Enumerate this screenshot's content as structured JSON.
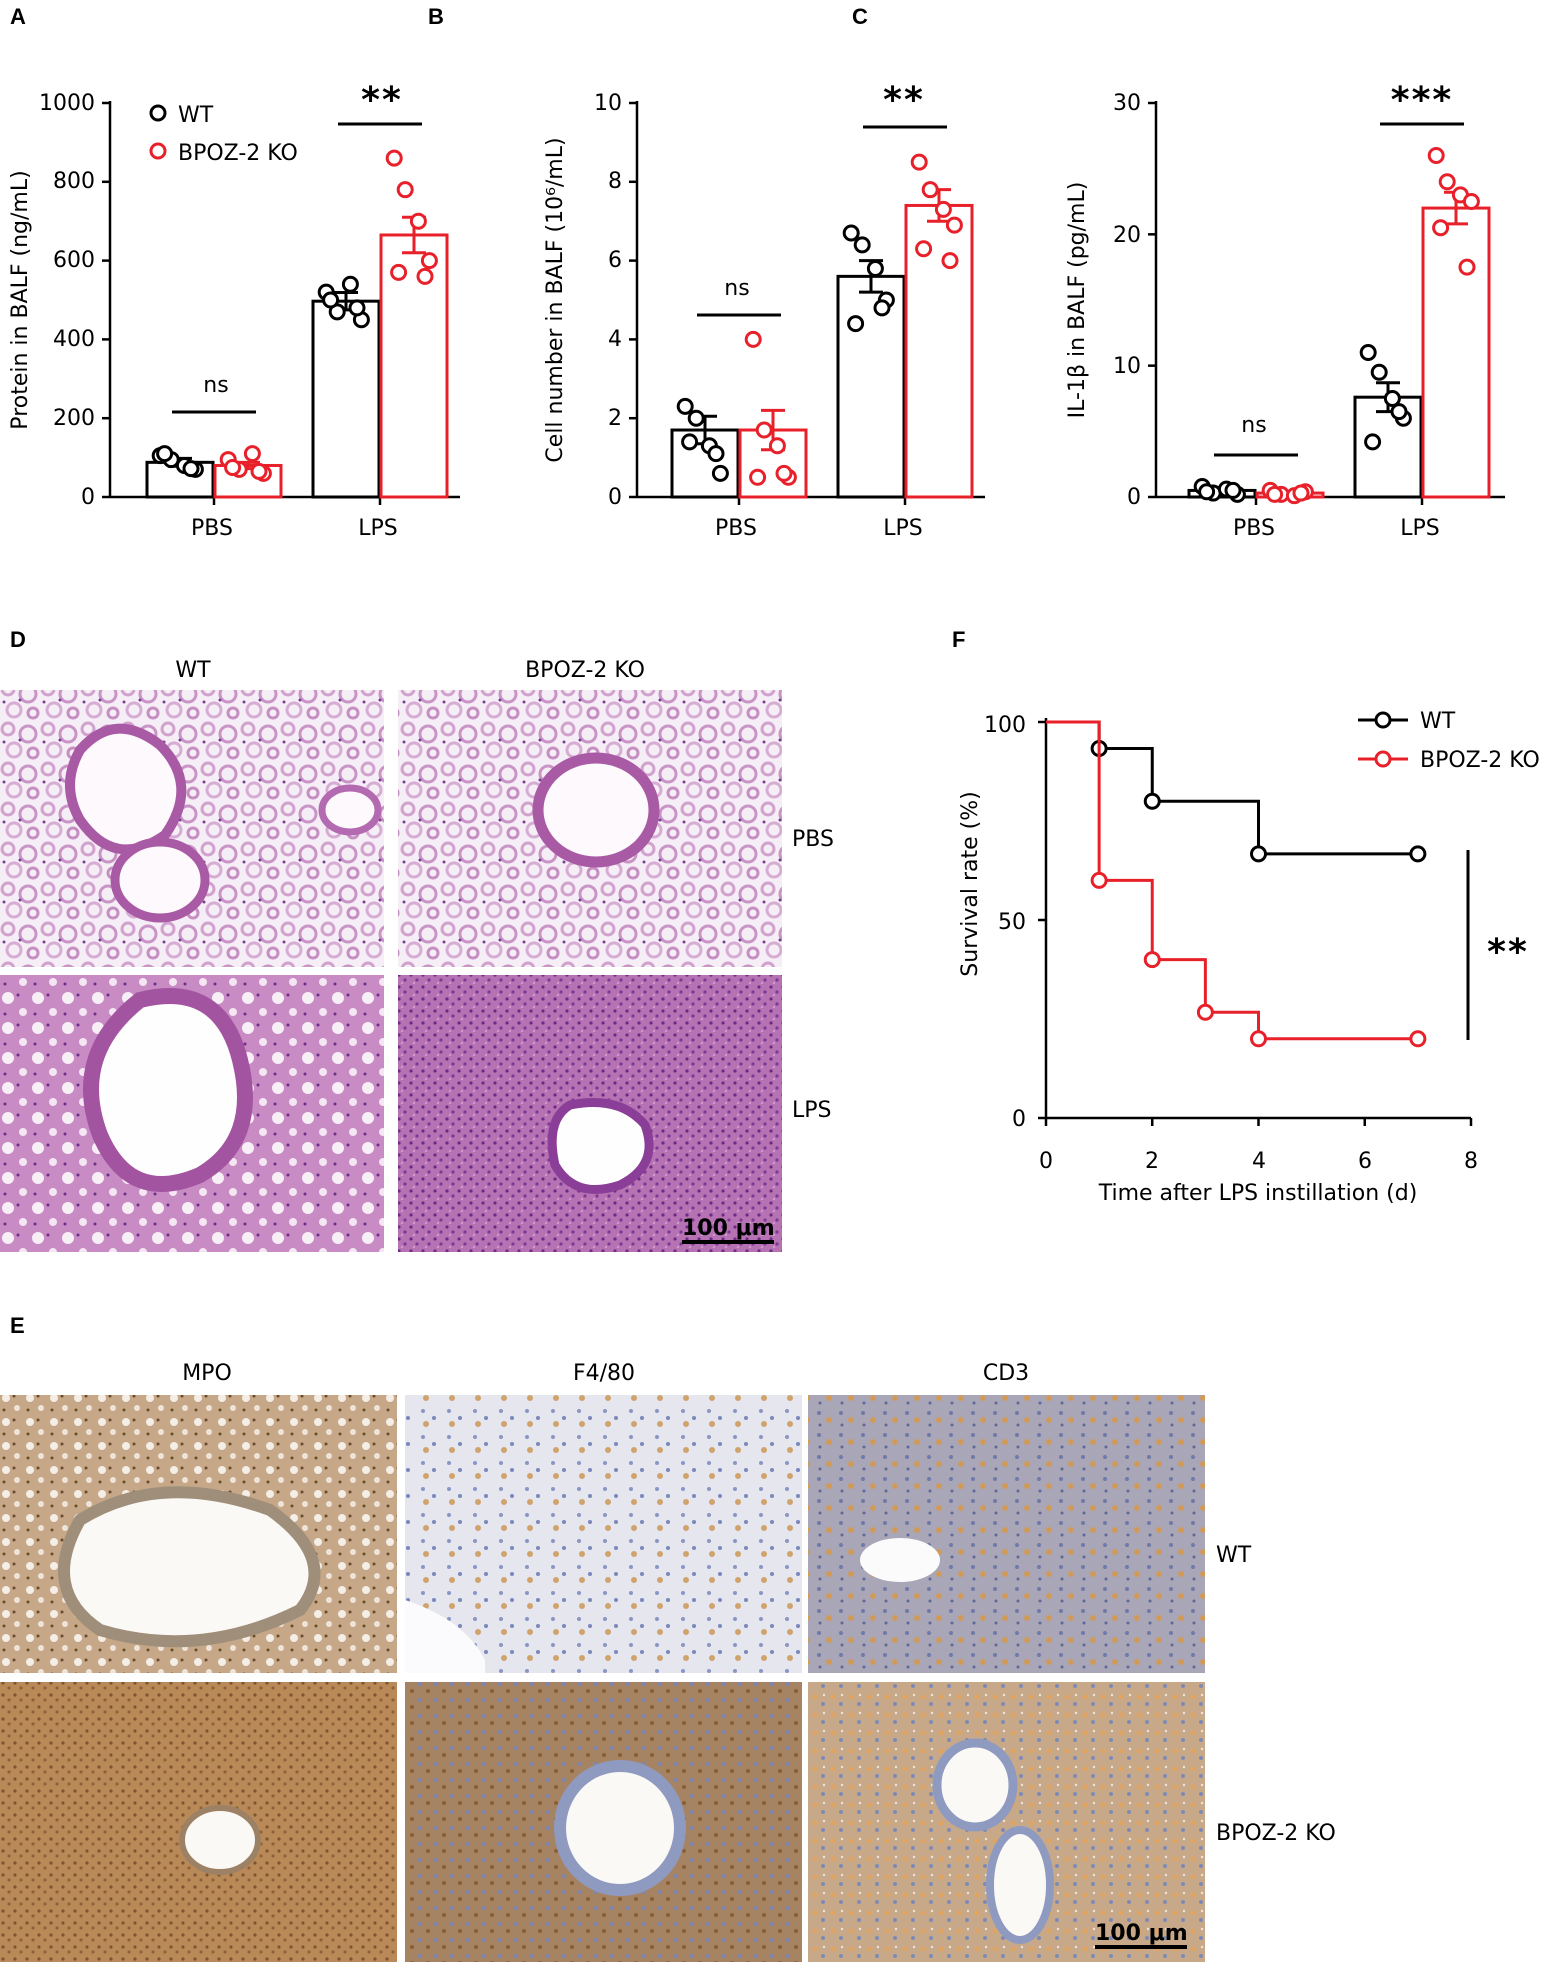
{
  "panels": {
    "A": "A",
    "B": "B",
    "C": "C",
    "D": "D",
    "E": "E",
    "F": "F"
  },
  "colors": {
    "wt": "#000000",
    "ko": "#e8202a"
  },
  "histology_d": {
    "col_labels": [
      "WT",
      "BPOZ-2 KO"
    ],
    "row_labels": [
      "PBS",
      "LPS"
    ],
    "scale_bar": "100 μm",
    "tissue_colors": [
      "#e9cfe6",
      "#c98bc4",
      "#b56fb4"
    ]
  },
  "histology_e": {
    "col_labels": [
      "MPO",
      "F4/80",
      "CD3"
    ],
    "row_labels": [
      "WT",
      "BPOZ-2 KO"
    ],
    "scale_bar": "100 μm",
    "tissue_colors": [
      "#cdb192",
      "#b9875a",
      "#8f9cc0"
    ]
  },
  "chart_data": [
    {
      "type": "bar",
      "panel": "A",
      "categories": [
        "PBS",
        "LPS"
      ],
      "ylabel": "Protein in BALF (ng/mL)",
      "ylim": [
        0,
        1000
      ],
      "yticks": [
        "0",
        "200",
        "400",
        "600",
        "800",
        "1000"
      ],
      "legend": {
        "placement": "top-left",
        "entries": [
          "WT",
          "BPOZ-2 KO"
        ]
      },
      "series": [
        {
          "name": "WT",
          "values": [
            88,
            497
          ],
          "sem": [
            10,
            22
          ],
          "points": [
            [
              105,
              95,
              80,
              70,
              110,
              72
            ],
            [
              520,
              470,
              540,
              450,
              500,
              480
            ]
          ]
        },
        {
          "name": "BPOZ-2 KO",
          "values": [
            80,
            665
          ],
          "sem": [
            8,
            45
          ],
          "points": [
            [
              95,
              70,
              110,
              60,
              75,
              65
            ],
            [
              860,
              780,
              700,
              600,
              570,
              560
            ]
          ]
        }
      ],
      "significance": [
        "ns",
        "**"
      ]
    },
    {
      "type": "bar",
      "panel": "B",
      "categories": [
        "PBS",
        "LPS"
      ],
      "ylabel": "Cell number in BALF (10⁶/mL)",
      "ylim": [
        0,
        10
      ],
      "yticks": [
        "0",
        "2",
        "4",
        "6",
        "8",
        "10"
      ],
      "series": [
        {
          "name": "WT",
          "values": [
            1.7,
            5.6
          ],
          "sem": [
            0.35,
            0.4
          ],
          "points": [
            [
              2.3,
              2.0,
              1.3,
              0.6,
              1.4,
              1.1
            ],
            [
              6.7,
              6.4,
              5.8,
              5.0,
              4.4,
              4.8
            ]
          ]
        },
        {
          "name": "BPOZ-2 KO",
          "values": [
            1.7,
            7.4
          ],
          "sem": [
            0.5,
            0.4
          ],
          "points": [
            [
              4.0,
              1.7,
              1.3,
              0.5,
              0.5,
              0.6
            ],
            [
              8.5,
              7.8,
              7.3,
              6.9,
              6.3,
              6.0
            ]
          ]
        }
      ],
      "significance": [
        "ns",
        "**"
      ]
    },
    {
      "type": "bar",
      "panel": "C",
      "categories": [
        "PBS",
        "LPS"
      ],
      "ylabel": "IL-1β in BALF (pg/mL)",
      "ylim": [
        0,
        30
      ],
      "yticks": [
        "0",
        "10",
        "20",
        "30"
      ],
      "series": [
        {
          "name": "WT",
          "values": [
            0.5,
            7.6
          ],
          "sem": [
            0.2,
            1.1
          ],
          "points": [
            [
              0.8,
              0.3,
              0.6,
              0.2,
              0.4,
              0.5
            ],
            [
              11.0,
              9.5,
              7.5,
              6.0,
              4.2,
              6.5
            ]
          ]
        },
        {
          "name": "BPOZ-2 KO",
          "values": [
            0.3,
            22.0
          ],
          "sem": [
            0.1,
            1.2
          ],
          "points": [
            [
              0.5,
              0.2,
              0.1,
              0.4,
              0.2,
              0.3
            ],
            [
              26.0,
              24.0,
              23.0,
              22.5,
              20.5,
              17.5
            ]
          ]
        }
      ],
      "significance": [
        "ns",
        "***"
      ]
    },
    {
      "type": "line",
      "panel": "F",
      "xlabel": "Time after LPS instillation (d)",
      "ylabel": "Survival rate (%)",
      "xlim": [
        0,
        8
      ],
      "ylim": [
        0,
        100
      ],
      "xticks": [
        "0",
        "2",
        "4",
        "6",
        "8"
      ],
      "yticks": [
        "0",
        "50",
        "100"
      ],
      "legend": {
        "placement": "top-right",
        "entries": [
          "WT",
          "BPOZ-2 KO"
        ]
      },
      "series": [
        {
          "name": "WT",
          "x": [
            0,
            1,
            2,
            4,
            7
          ],
          "y": [
            100,
            93.3,
            80,
            66.7,
            66.7
          ]
        },
        {
          "name": "BPOZ-2 KO",
          "x": [
            0,
            1,
            2,
            3,
            4,
            7
          ],
          "y": [
            100,
            60,
            40,
            26.7,
            20,
            20
          ]
        }
      ],
      "significance": "**"
    }
  ]
}
